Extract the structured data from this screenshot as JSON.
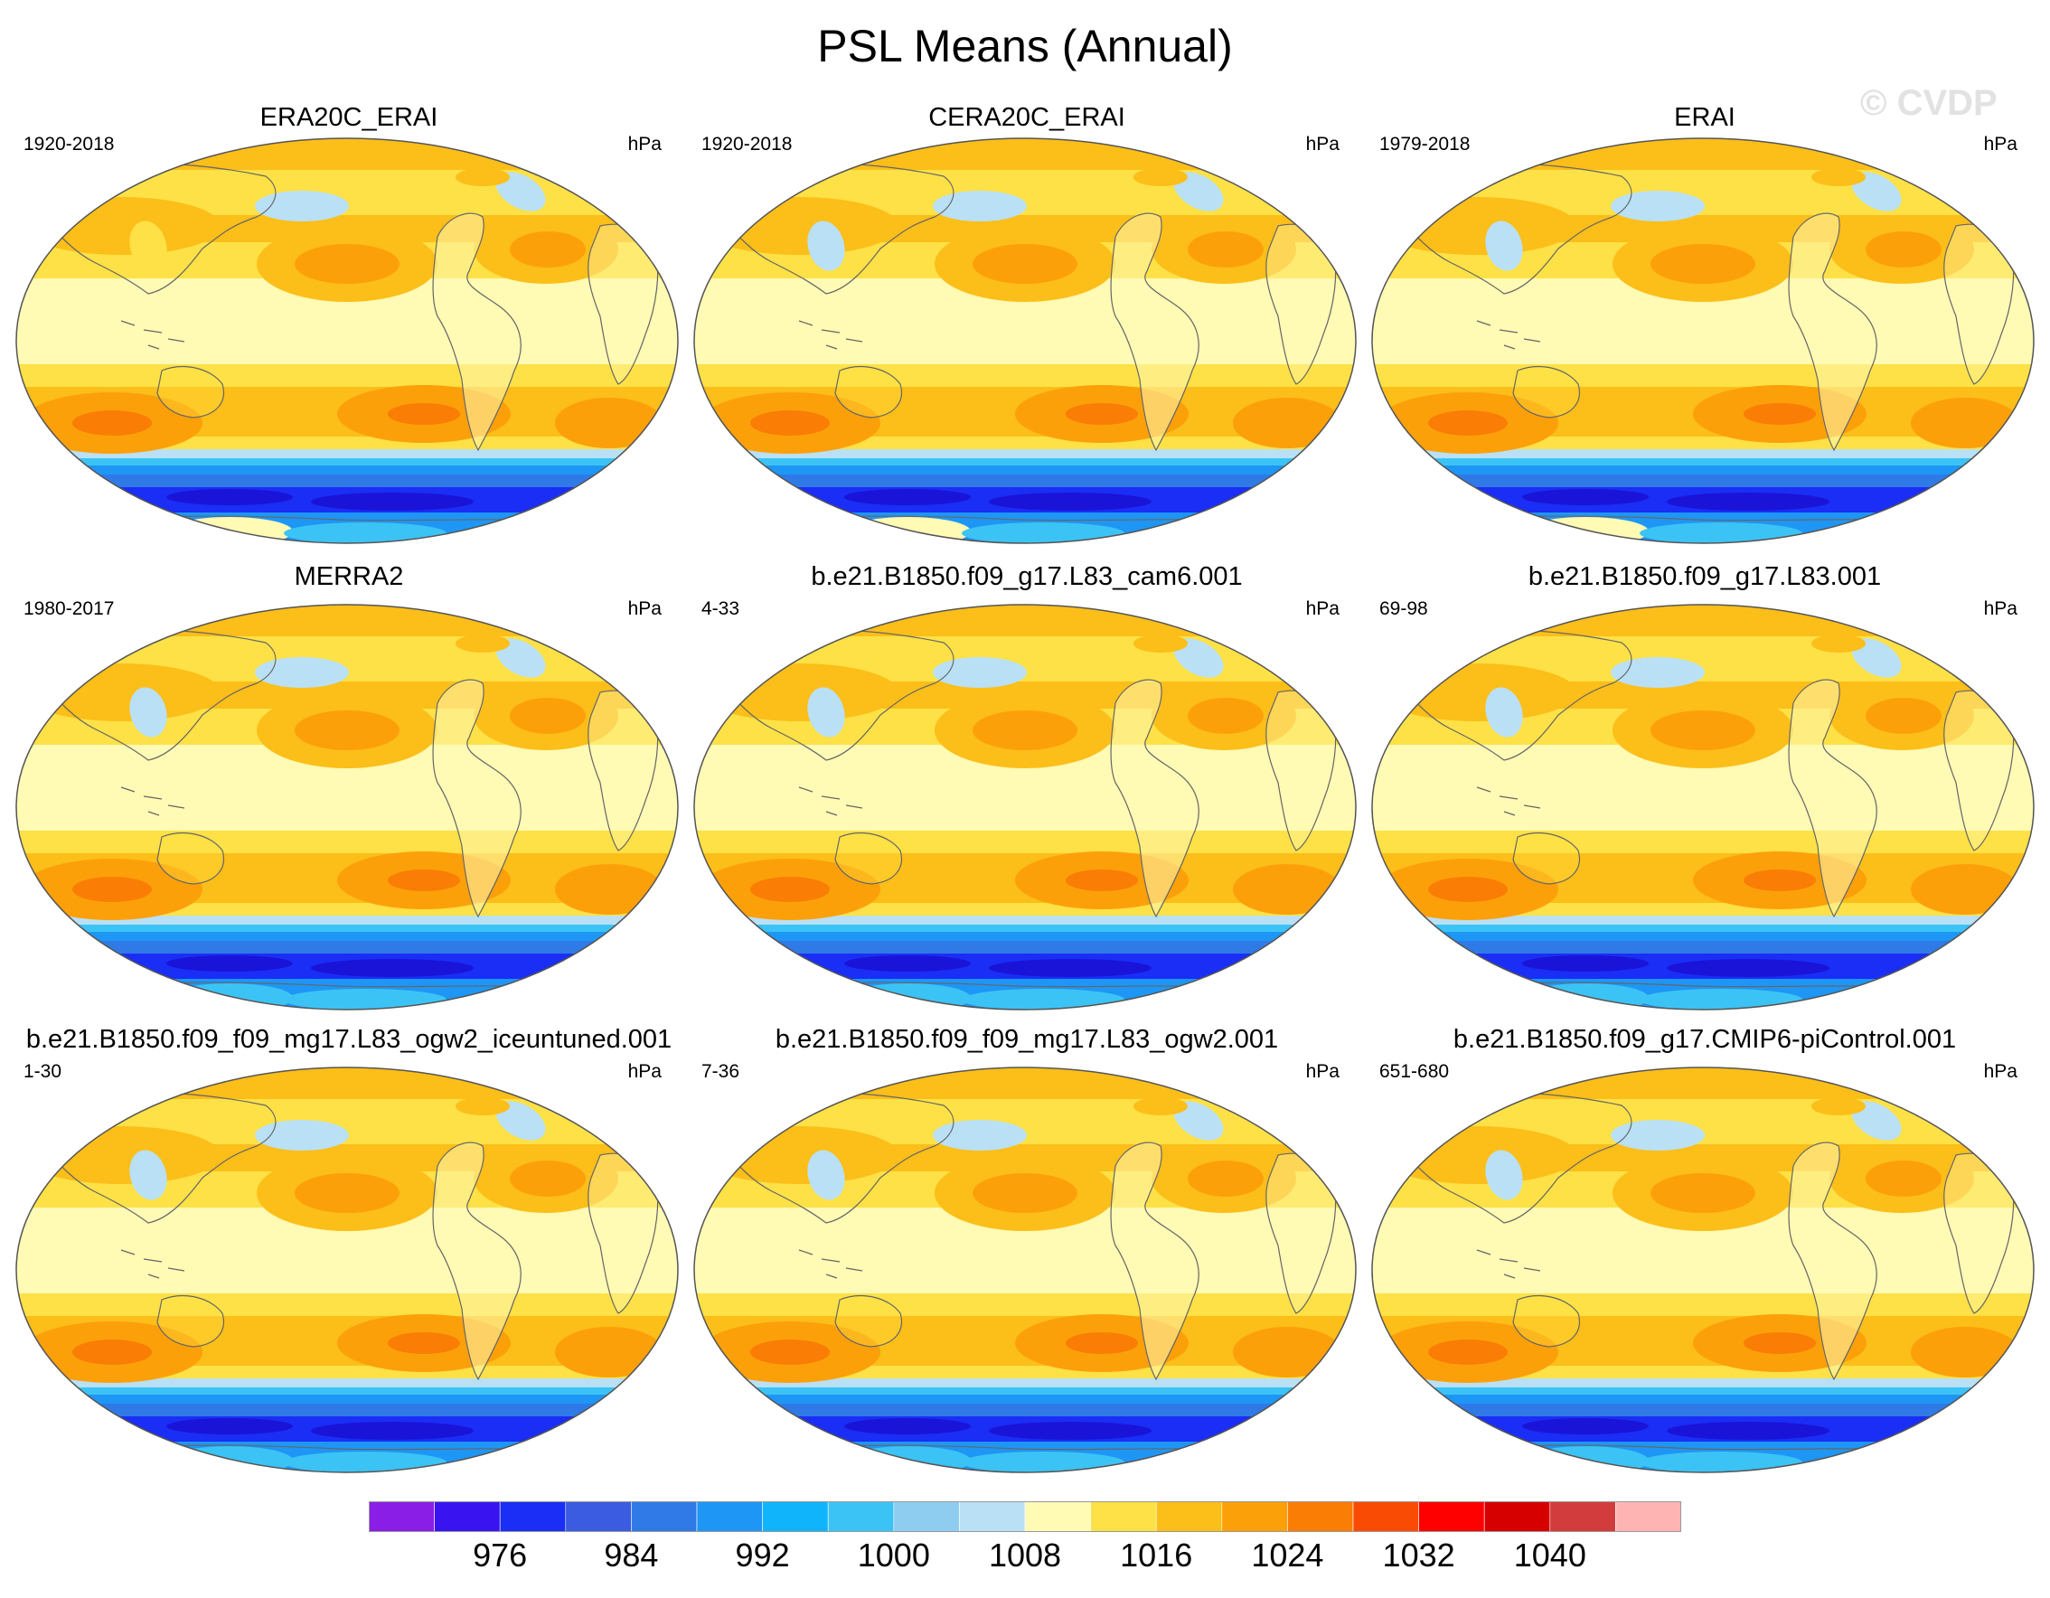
{
  "title": "PSL Means (Annual)",
  "watermark": "© CVDP",
  "panels": [
    {
      "title": "ERA20C_ERAI",
      "years": "1920-2018",
      "units": "hPa",
      "continent_anomaly": "high",
      "antarctic_patch": true
    },
    {
      "title": "CERA20C_ERAI",
      "years": "1920-2018",
      "units": "hPa",
      "continent_anomaly": "low",
      "antarctic_patch": true
    },
    {
      "title": "ERAI",
      "years": "1979-2018",
      "units": "hPa",
      "continent_anomaly": "low",
      "antarctic_patch": true
    },
    {
      "title": "MERRA2",
      "years": "1980-2017",
      "units": "hPa",
      "continent_anomaly": "low",
      "antarctic_patch": false
    },
    {
      "title": "b.e21.B1850.f09_g17.L83_cam6.001",
      "years": "4-33",
      "units": "hPa",
      "continent_anomaly": "low",
      "antarctic_patch": false
    },
    {
      "title": "b.e21.B1850.f09_g17.L83.001",
      "years": "69-98",
      "units": "hPa",
      "continent_anomaly": "low",
      "antarctic_patch": false
    },
    {
      "title": "b.e21.B1850.f09_f09_mg17.L83_ogw2_iceuntuned.001",
      "years": "1-30",
      "units": "hPa",
      "continent_anomaly": "low",
      "antarctic_patch": false
    },
    {
      "title": "b.e21.B1850.f09_f09_mg17.L83_ogw2.001",
      "years": "7-36",
      "units": "hPa",
      "continent_anomaly": "low",
      "antarctic_patch": false
    },
    {
      "title": "b.e21.B1850.f09_g17.CMIP6-piControl.001",
      "years": "651-680",
      "units": "hPa",
      "continent_anomaly": "low",
      "antarctic_patch": false
    }
  ],
  "colorbar": {
    "colors": [
      "#8b1ee6",
      "#3a14f0",
      "#1a2ef5",
      "#3b5ce0",
      "#2f7ae6",
      "#1e96f5",
      "#0fb4fa",
      "#3cc3f5",
      "#8fcdf0",
      "#b9e0f5",
      "#fffab4",
      "#fde146",
      "#fcbe19",
      "#fca00a",
      "#fa7d05",
      "#fa4b05",
      "#ff0000",
      "#d70000",
      "#d23c3c",
      "#ffb4b4"
    ],
    "labels": [
      "976",
      "984",
      "992",
      "1000",
      "1008",
      "1016",
      "1024",
      "1032",
      "1040"
    ]
  }
}
